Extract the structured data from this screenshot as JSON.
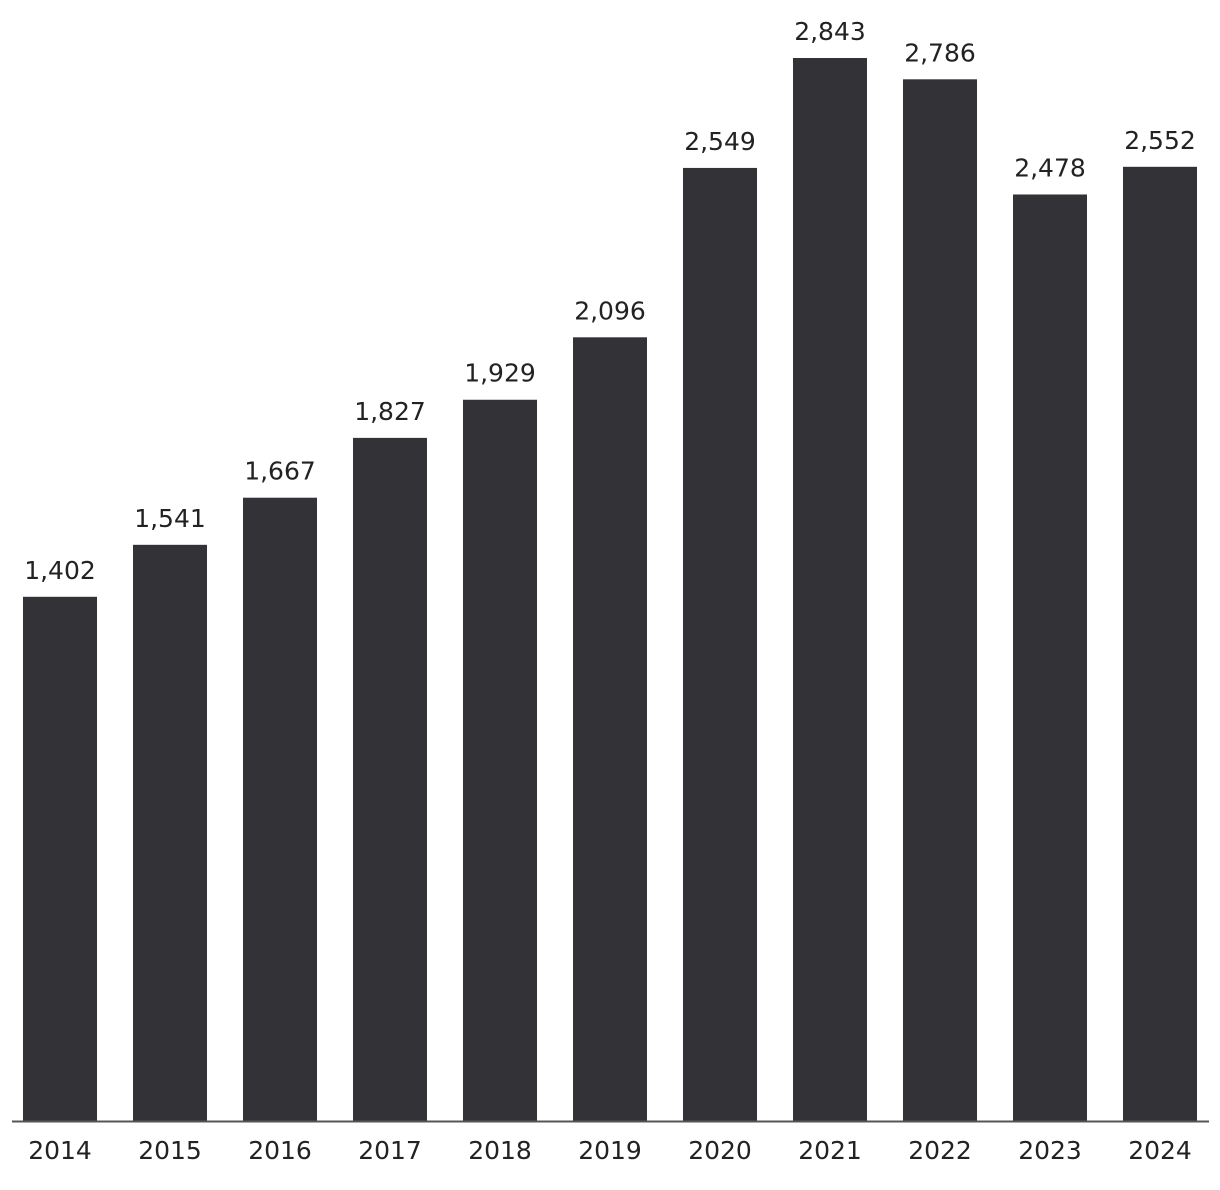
{
  "chart_data": {
    "type": "bar",
    "categories": [
      "2014",
      "2015",
      "2016",
      "2017",
      "2018",
      "2019",
      "2020",
      "2021",
      "2022",
      "2023",
      "2024"
    ],
    "values": [
      1402,
      1541,
      1667,
      1827,
      1929,
      2096,
      2549,
      2843,
      2786,
      2478,
      2552
    ],
    "value_labels": [
      "1,402",
      "1,541",
      "1,667",
      "1,827",
      "1,929",
      "2,096",
      "2,549",
      "2,843",
      "2,786",
      "2,478",
      "2,552"
    ],
    "title": "",
    "xlabel": "",
    "ylabel": "",
    "ylim": [
      0,
      2843
    ],
    "grid": false,
    "legend": "none",
    "bar_color": "#333236",
    "axis_color": "#555555"
  }
}
